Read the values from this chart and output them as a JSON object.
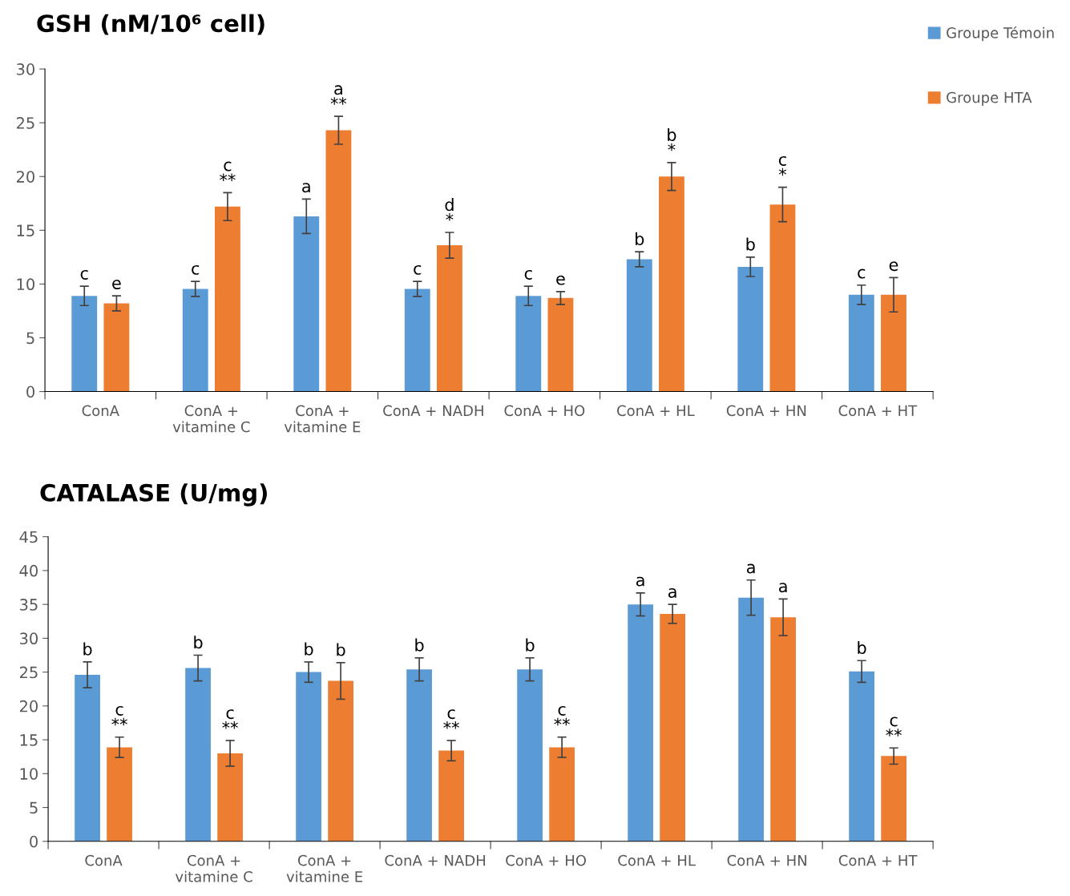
{
  "chart_data": [
    {
      "type": "bar",
      "title": "GSH (nM/10⁶ cell)",
      "categories": [
        "ConA",
        "ConA +\nvitamine C",
        "ConA +\nvitamine E",
        "ConA + NADH",
        "ConA + HO",
        "ConA + HL",
        "ConA + HN",
        "ConA + HT"
      ],
      "series": [
        {
          "name": "Groupe Témoin",
          "color": "#5b9bd5",
          "values": [
            8.9,
            9.55,
            16.3,
            9.55,
            8.9,
            12.3,
            11.6,
            9.0
          ],
          "errors": [
            0.9,
            0.7,
            1.6,
            0.7,
            0.9,
            0.7,
            0.9,
            0.9
          ],
          "value_labels": [
            "c",
            "c",
            "a",
            "c",
            "c",
            "b",
            "b",
            "c"
          ]
        },
        {
          "name": "Groupe HTA",
          "color": "#ed7d31",
          "values": [
            8.2,
            17.2,
            24.3,
            13.6,
            8.7,
            20.0,
            17.4,
            9.0
          ],
          "errors": [
            0.7,
            1.3,
            1.3,
            1.2,
            0.6,
            1.3,
            1.6,
            1.6
          ],
          "value_labels": [
            "e",
            "c\n**",
            "a\n**",
            "d\n*",
            "e",
            "b\n*",
            "c\n*",
            "e"
          ]
        }
      ],
      "ylim": [
        0,
        30
      ],
      "yticks": [
        0,
        5,
        10,
        15,
        20,
        25,
        30
      ],
      "grid": false,
      "legend": "top right"
    },
    {
      "type": "bar",
      "title": "CATALASE (U/mg)",
      "categories": [
        "ConA",
        "ConA +\nvitamine C",
        "ConA +\nvitamine E",
        "ConA + NADH",
        "ConA + HO",
        "ConA + HL",
        "ConA + HN",
        "ConA + HT"
      ],
      "series": [
        {
          "color": "#5b9bd5",
          "values": [
            24.6,
            25.6,
            25.0,
            25.4,
            25.4,
            35.0,
            36.0,
            25.1
          ],
          "errors": [
            1.9,
            1.9,
            1.5,
            1.7,
            1.7,
            1.7,
            2.6,
            1.6
          ],
          "value_labels": [
            "b",
            "b",
            "b",
            "b",
            "b",
            "a",
            "a",
            "b"
          ]
        },
        {
          "color": "#ed7d31",
          "values": [
            13.9,
            13.0,
            23.7,
            13.4,
            13.9,
            33.6,
            33.1,
            12.6
          ],
          "errors": [
            1.5,
            1.9,
            2.7,
            1.5,
            1.5,
            1.4,
            2.7,
            1.2
          ],
          "value_labels": [
            "c\n**",
            "c\n**",
            "b",
            "c\n**",
            "c\n**",
            "a",
            "a",
            "c\n**"
          ]
        }
      ],
      "ylim": [
        0,
        45
      ],
      "yticks": [
        0,
        5,
        10,
        15,
        20,
        25,
        30,
        35,
        40,
        45
      ],
      "grid": false
    }
  ]
}
